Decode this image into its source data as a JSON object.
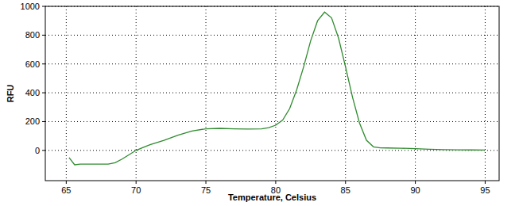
{
  "chart_data": {
    "type": "line",
    "x_label": "Temperature, Celsius",
    "y_label": "RFU",
    "x": [
      65.2,
      65.6,
      66,
      67,
      68,
      68.5,
      69,
      69.5,
      70,
      70.5,
      71,
      72,
      73,
      74,
      75,
      76,
      77,
      78,
      79,
      79.5,
      80,
      80.5,
      81,
      81.5,
      82,
      82.5,
      83,
      83.5,
      84,
      84.5,
      85,
      85.5,
      86,
      86.5,
      87,
      87.5,
      88,
      89,
      90,
      91,
      92,
      93,
      94,
      95
    ],
    "series": [
      {
        "name": "RFU",
        "color": "#2e8b2e",
        "values": [
          -50,
          -100,
          -95,
          -95,
          -95,
          -85,
          -60,
          -30,
          0,
          20,
          40,
          70,
          105,
          135,
          150,
          153,
          150,
          148,
          150,
          158,
          175,
          210,
          290,
          420,
          580,
          760,
          900,
          960,
          920,
          780,
          580,
          370,
          190,
          70,
          25,
          18,
          17,
          15,
          12,
          8,
          5,
          4,
          3,
          2
        ]
      }
    ],
    "xlim": [
      63.5,
      96
    ],
    "ylim": [
      -210,
      1000
    ],
    "xticks": [
      65,
      70,
      75,
      80,
      85,
      90,
      95
    ],
    "yticks": [
      0,
      200,
      400,
      600,
      800,
      1000
    ],
    "grid": true
  }
}
